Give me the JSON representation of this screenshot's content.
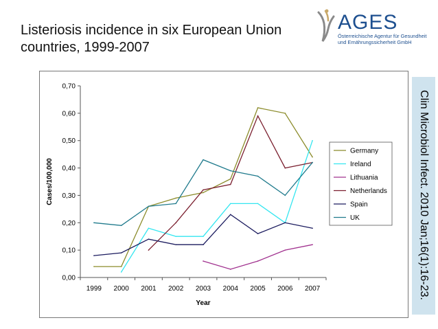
{
  "slide": {
    "title": "Listeriosis incidence in six European Union countries, 1999-2007",
    "citation": "Clin Microbiol Infect. 2010 Jan;16(1):16-23."
  },
  "logo": {
    "wordmark": "AGES",
    "line1": "Österreichische Agentur für Gesundheit",
    "line2": "und Ernährungssicherheit GmbH",
    "color": "#1d4f8f"
  },
  "chart_data": {
    "type": "line",
    "x": [
      1999,
      2000,
      2001,
      2002,
      2003,
      2004,
      2005,
      2006,
      2007
    ],
    "categories": [
      "1999",
      "2000",
      "2001",
      "2002",
      "2003",
      "2004",
      "2005",
      "2006",
      "2007"
    ],
    "xlabel": "Year",
    "ylabel": "Cases/100,000",
    "ylim": [
      0,
      0.7
    ],
    "yticks": [
      "0,00",
      "0,10",
      "0,20",
      "0,30",
      "0,40",
      "0,50",
      "0,60",
      "0,70"
    ],
    "legend_position": "right",
    "grid": false,
    "series": [
      {
        "name": "Germany",
        "color": "#8b8b2a",
        "values": [
          0.04,
          0.04,
          0.26,
          0.29,
          0.31,
          0.36,
          0.62,
          0.6,
          0.44
        ]
      },
      {
        "name": "Ireland",
        "color": "#33e6f0",
        "values": [
          null,
          0.02,
          0.18,
          0.15,
          0.15,
          0.27,
          0.27,
          0.2,
          0.5
        ]
      },
      {
        "name": "Lithuania",
        "color": "#a0308e",
        "values": [
          null,
          null,
          null,
          null,
          0.06,
          0.03,
          0.06,
          0.1,
          0.12
        ]
      },
      {
        "name": "Netherlands",
        "color": "#7a1e2e",
        "values": [
          null,
          null,
          0.1,
          0.2,
          0.32,
          0.34,
          0.59,
          0.4,
          0.42
        ]
      },
      {
        "name": "Spain",
        "color": "#1a1a5e",
        "values": [
          0.08,
          0.09,
          0.14,
          0.12,
          0.12,
          0.23,
          0.16,
          0.2,
          0.18
        ]
      },
      {
        "name": "UK",
        "color": "#1f7a8c",
        "values": [
          0.2,
          0.19,
          0.26,
          0.27,
          0.43,
          0.39,
          0.37,
          0.3,
          0.42
        ]
      }
    ]
  }
}
